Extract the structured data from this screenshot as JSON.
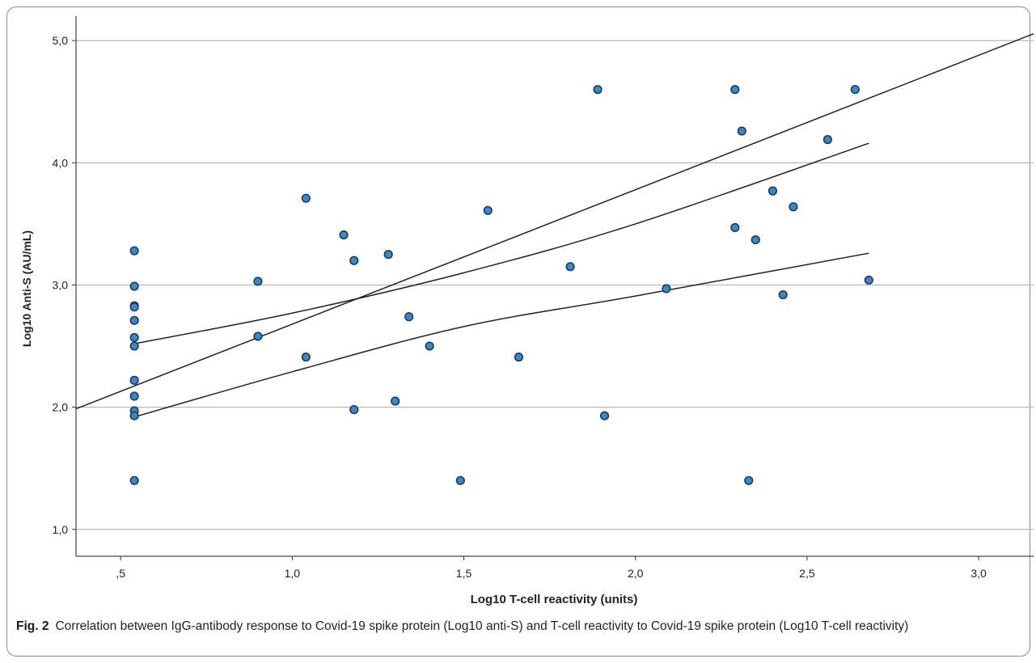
{
  "figure": {
    "label": "Fig. 2",
    "caption": "Correlation between IgG-antibody response to Covid-19 spike protein (Log10 anti-S) and T-cell reactivity to Covid-19 spike protein (Log10 T-cell reactivity)"
  },
  "chart_data": {
    "type": "scatter",
    "xlabel": "Log10 T-cell reactivity (units)",
    "ylabel": "Log10 Anti-S (AU/mL)",
    "xlim": [
      0.37,
      3.16
    ],
    "ylim": [
      0.78,
      5.2
    ],
    "x_ticks": [
      0.5,
      1.0,
      1.5,
      2.0,
      2.5,
      3.0
    ],
    "x_tick_labels": [
      ",5",
      "1,0",
      "1,5",
      "2,0",
      "2,5",
      "3,0"
    ],
    "y_ticks": [
      1.0,
      2.0,
      3.0,
      4.0,
      5.0
    ],
    "y_tick_labels": [
      "1,0",
      "2,0",
      "3,0",
      "4,0",
      "5,0"
    ],
    "grid": "horizontal",
    "colors": {
      "point_fill": "#3d87c4",
      "point_stroke": "#1b3b5c",
      "line": "#222222",
      "grid": "#b8b8b8"
    },
    "points": [
      {
        "x": 0.54,
        "y": 3.28
      },
      {
        "x": 0.54,
        "y": 2.99
      },
      {
        "x": 0.54,
        "y": 2.83
      },
      {
        "x": 0.54,
        "y": 2.82
      },
      {
        "x": 0.54,
        "y": 2.71
      },
      {
        "x": 0.54,
        "y": 2.57
      },
      {
        "x": 0.54,
        "y": 2.5
      },
      {
        "x": 0.54,
        "y": 2.22
      },
      {
        "x": 0.54,
        "y": 2.09
      },
      {
        "x": 0.54,
        "y": 1.97
      },
      {
        "x": 0.54,
        "y": 1.93
      },
      {
        "x": 0.54,
        "y": 1.4
      },
      {
        "x": 0.9,
        "y": 3.03
      },
      {
        "x": 0.9,
        "y": 2.58
      },
      {
        "x": 1.04,
        "y": 3.71
      },
      {
        "x": 1.04,
        "y": 2.41
      },
      {
        "x": 1.15,
        "y": 3.41
      },
      {
        "x": 1.18,
        "y": 3.2
      },
      {
        "x": 1.18,
        "y": 1.98
      },
      {
        "x": 1.28,
        "y": 3.25
      },
      {
        "x": 1.3,
        "y": 2.05
      },
      {
        "x": 1.34,
        "y": 2.74
      },
      {
        "x": 1.4,
        "y": 2.5
      },
      {
        "x": 1.49,
        "y": 1.4
      },
      {
        "x": 1.57,
        "y": 3.61
      },
      {
        "x": 1.66,
        "y": 2.41
      },
      {
        "x": 1.81,
        "y": 3.15
      },
      {
        "x": 1.89,
        "y": 4.6
      },
      {
        "x": 1.91,
        "y": 1.93
      },
      {
        "x": 2.09,
        "y": 2.97
      },
      {
        "x": 2.29,
        "y": 4.6
      },
      {
        "x": 2.29,
        "y": 3.47
      },
      {
        "x": 2.31,
        "y": 4.26
      },
      {
        "x": 2.33,
        "y": 1.4
      },
      {
        "x": 2.35,
        "y": 3.37
      },
      {
        "x": 2.4,
        "y": 3.77
      },
      {
        "x": 2.43,
        "y": 2.92
      },
      {
        "x": 2.46,
        "y": 3.64
      },
      {
        "x": 2.56,
        "y": 4.19
      },
      {
        "x": 2.64,
        "y": 4.6
      },
      {
        "x": 2.68,
        "y": 3.04
      }
    ],
    "fit_line": {
      "intercept": 1.58,
      "slope": 1.1
    },
    "ci_upper": [
      [
        0.54,
        2.52
      ],
      [
        1.0,
        2.77
      ],
      [
        1.5,
        3.1
      ],
      [
        2.0,
        3.5
      ],
      [
        2.68,
        4.16
      ]
    ],
    "ci_lower": [
      [
        0.54,
        1.92
      ],
      [
        1.0,
        2.29
      ],
      [
        1.5,
        2.66
      ],
      [
        2.0,
        2.91
      ],
      [
        2.68,
        3.26
      ]
    ]
  }
}
